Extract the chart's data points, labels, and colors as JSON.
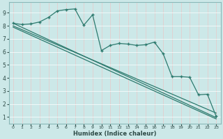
{
  "xlabel": "Humidex (Indice chaleur)",
  "bg_color": "#cce8e8",
  "line_color": "#2d7a6e",
  "xlim": [
    -0.5,
    23.5
  ],
  "ylim": [
    0.5,
    9.8
  ],
  "yticks": [
    1,
    2,
    3,
    4,
    5,
    6,
    7,
    8,
    9
  ],
  "xticks": [
    0,
    1,
    2,
    3,
    4,
    5,
    6,
    7,
    8,
    9,
    10,
    11,
    12,
    13,
    14,
    15,
    16,
    17,
    18,
    19,
    20,
    21,
    22,
    23
  ],
  "curve1_x": [
    0,
    1,
    2,
    3,
    4,
    5,
    6,
    7,
    8,
    9,
    10,
    11,
    12,
    13,
    14,
    15,
    16,
    17,
    18,
    19,
    20,
    21,
    22,
    23
  ],
  "curve1_y": [
    8.2,
    8.1,
    8.15,
    8.3,
    8.65,
    9.15,
    9.25,
    9.3,
    8.05,
    8.85,
    6.1,
    6.5,
    6.65,
    6.6,
    6.5,
    6.55,
    6.75,
    5.85,
    4.1,
    4.1,
    4.05,
    2.7,
    2.75,
    1.05
  ],
  "line2_x": [
    0,
    23
  ],
  "line2_y": [
    8.2,
    0.95
  ],
  "line3_x": [
    0,
    23
  ],
  "line3_y": [
    7.9,
    0.85
  ],
  "line4_x": [
    0,
    23
  ],
  "line4_y": [
    8.0,
    1.3
  ]
}
